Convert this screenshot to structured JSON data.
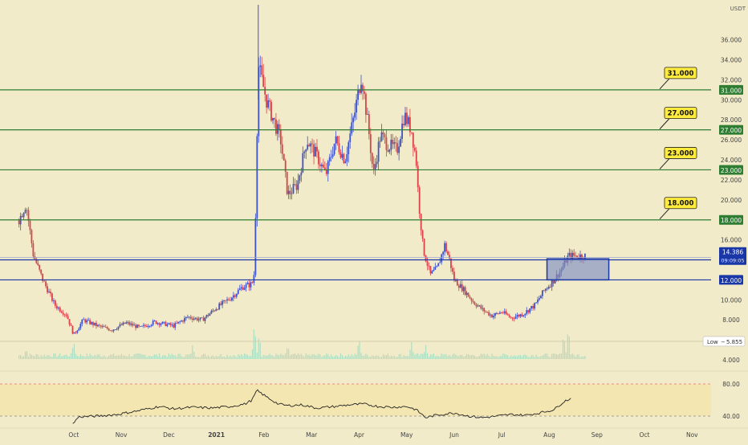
{
  "chart_data": {
    "type": "candlestick",
    "currency_label": "USDT",
    "y_ticks": [
      4,
      6,
      8,
      10,
      12,
      14,
      16,
      18,
      20,
      22,
      24,
      26,
      28,
      30,
      32,
      34,
      36
    ],
    "y_tick_labels": [
      "4.000",
      "6.000",
      "8.000",
      "10.000",
      "12.000",
      "14.000",
      "16.000",
      "18.000",
      "20.000",
      "22.000",
      "24.000",
      "26.000",
      "28.000",
      "30.000",
      "32.000",
      "34.000",
      "36.000"
    ],
    "ylim": [
      3.2,
      39.5
    ],
    "x_labels": [
      "Oct",
      "Nov",
      "Dec",
      "2021",
      "Feb",
      "Mar",
      "Apr",
      "May",
      "Jun",
      "Jul",
      "Aug",
      "Sep",
      "Oct",
      "Nov"
    ],
    "x_label_times": [
      0.3,
      1.3,
      2.3,
      3.3,
      4.3,
      5.3,
      6.3,
      7.3,
      8.3,
      9.3,
      10.3,
      11.3,
      12.3,
      13.3
    ],
    "resistance_levels": [
      {
        "value": 31.0,
        "label": "31.000",
        "axis_label": "31.000"
      },
      {
        "value": 27.0,
        "label": "27.000",
        "axis_label": "27.000"
      },
      {
        "value": 23.0,
        "label": "23.000",
        "axis_label": "23.000"
      },
      {
        "value": 18.0,
        "label": "18.000",
        "axis_label": "18.000"
      }
    ],
    "support_zone": {
      "top": 14.0,
      "bottom": 12.0,
      "top_label": "14.000",
      "bottom_label": "12.000",
      "rect_top": 14.1,
      "rect_bottom": 12.0,
      "rect_start_time": 10.25,
      "rect_end_time": 11.55
    },
    "current_price": {
      "value": 14.386,
      "label": "14.386",
      "countdown": "09:09:05"
    },
    "low_marker": {
      "value": 5.855,
      "label": "Low",
      "value_label": "5.855"
    },
    "price_series": {
      "start_time": -0.85,
      "end_time": 11.05,
      "key_points": [
        [
          -0.85,
          18
        ],
        [
          -0.7,
          19.6
        ],
        [
          -0.55,
          14.5
        ],
        [
          -0.35,
          12
        ],
        [
          -0.1,
          9.5
        ],
        [
          0.15,
          8.5
        ],
        [
          0.3,
          6.5
        ],
        [
          0.5,
          8
        ],
        [
          0.8,
          7.4
        ],
        [
          1.1,
          7
        ],
        [
          1.4,
          7.7
        ],
        [
          1.7,
          7.2
        ],
        [
          2.0,
          7.8
        ],
        [
          2.4,
          7.4
        ],
        [
          2.7,
          8.3
        ],
        [
          3.0,
          8.0
        ],
        [
          3.3,
          9.2
        ],
        [
          3.6,
          10.2
        ],
        [
          3.85,
          11.3
        ],
        [
          4.05,
          11.6
        ],
        [
          4.1,
          12.8
        ],
        [
          4.18,
          33.5
        ],
        [
          4.35,
          30
        ],
        [
          4.5,
          28
        ],
        [
          4.65,
          26
        ],
        [
          4.8,
          20.5
        ],
        [
          5.0,
          21.5
        ],
        [
          5.2,
          26
        ],
        [
          5.4,
          24.5
        ],
        [
          5.6,
          22.5
        ],
        [
          5.8,
          26
        ],
        [
          6.0,
          24
        ],
        [
          6.2,
          28.5
        ],
        [
          6.35,
          32.5
        ],
        [
          6.5,
          27
        ],
        [
          6.6,
          22.5
        ],
        [
          6.75,
          26.5
        ],
        [
          6.9,
          25.5
        ],
        [
          7.1,
          25
        ],
        [
          7.25,
          28.5
        ],
        [
          7.4,
          27
        ],
        [
          7.5,
          24
        ],
        [
          7.55,
          20
        ],
        [
          7.65,
          15
        ],
        [
          7.8,
          12.5
        ],
        [
          7.95,
          13.2
        ],
        [
          8.1,
          15.5
        ],
        [
          8.2,
          14
        ],
        [
          8.3,
          12
        ],
        [
          8.5,
          11
        ],
        [
          8.7,
          9.8
        ],
        [
          8.9,
          9.0
        ],
        [
          9.1,
          8.4
        ],
        [
          9.3,
          8.8
        ],
        [
          9.5,
          8.2
        ],
        [
          9.75,
          8.6
        ],
        [
          10.0,
          9.5
        ],
        [
          10.2,
          11
        ],
        [
          10.4,
          12
        ],
        [
          10.55,
          13
        ],
        [
          10.7,
          14.4
        ]
      ]
    },
    "volume_series": {
      "baseline": 0,
      "max": 10,
      "spikes": [
        [
          -0.7,
          3
        ],
        [
          0.3,
          5
        ],
        [
          2.8,
          4
        ],
        [
          4.1,
          10
        ],
        [
          4.2,
          7
        ],
        [
          4.8,
          4
        ],
        [
          6.3,
          6
        ],
        [
          7.4,
          5
        ],
        [
          7.7,
          4
        ],
        [
          10.6,
          7
        ],
        [
          10.7,
          9
        ]
      ]
    },
    "rsi": {
      "upper_label": "80.00",
      "lower_label": "40.00",
      "upper": 80,
      "lower": 40,
      "ylim": [
        28,
        92
      ],
      "key_points": [
        [
          0.28,
          30
        ],
        [
          0.4,
          39
        ],
        [
          0.8,
          40
        ],
        [
          1.2,
          42
        ],
        [
          1.6,
          46
        ],
        [
          2.1,
          52
        ],
        [
          2.4,
          49
        ],
        [
          2.8,
          51
        ],
        [
          3.2,
          50
        ],
        [
          3.6,
          52
        ],
        [
          3.9,
          55
        ],
        [
          4.05,
          60
        ],
        [
          4.15,
          72
        ],
        [
          4.35,
          64
        ],
        [
          4.6,
          55
        ],
        [
          4.8,
          53
        ],
        [
          5.1,
          54
        ],
        [
          5.4,
          50
        ],
        [
          5.8,
          52
        ],
        [
          6.1,
          54
        ],
        [
          6.4,
          55
        ],
        [
          6.7,
          52
        ],
        [
          7.0,
          51
        ],
        [
          7.3,
          52
        ],
        [
          7.5,
          48
        ],
        [
          7.7,
          38
        ],
        [
          7.9,
          41
        ],
        [
          8.3,
          44
        ],
        [
          8.6,
          40
        ],
        [
          8.9,
          38
        ],
        [
          9.2,
          40
        ],
        [
          9.5,
          42
        ],
        [
          9.8,
          41
        ],
        [
          10.1,
          44
        ],
        [
          10.4,
          48
        ],
        [
          10.6,
          58
        ],
        [
          10.75,
          62
        ]
      ]
    },
    "colors": {
      "background": "#f1ebc9",
      "up_candle": "#3e52c9",
      "down_candle": "#d8434a",
      "level_line": "#2e7d32",
      "zone_line": "#1a37a8",
      "zone_fill": "#7f8fc4",
      "callout_fill": "#ffeb3b",
      "volume": "#a7dcc0",
      "rsi_line": "#222222",
      "rsi_band": "#f7e2a0",
      "rsi_dash": "#e57373"
    }
  }
}
